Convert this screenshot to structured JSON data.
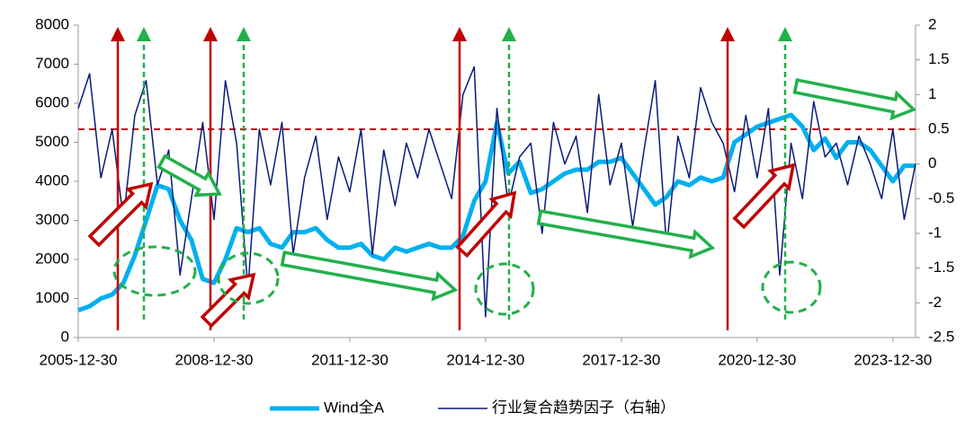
{
  "chart_data": {
    "type": "line",
    "x": [
      2006,
      2006.25,
      2006.5,
      2006.75,
      2007,
      2007.25,
      2007.5,
      2007.75,
      2008,
      2008.25,
      2008.5,
      2008.75,
      2009,
      2009.25,
      2009.5,
      2009.75,
      2010,
      2010.25,
      2010.5,
      2010.75,
      2011,
      2011.25,
      2011.5,
      2011.75,
      2012,
      2012.25,
      2012.5,
      2012.75,
      2013,
      2013.25,
      2013.5,
      2013.75,
      2014,
      2014.25,
      2014.5,
      2014.75,
      2015,
      2015.25,
      2015.5,
      2015.75,
      2016,
      2016.25,
      2016.5,
      2016.75,
      2017,
      2017.25,
      2017.5,
      2017.75,
      2018,
      2018.25,
      2018.5,
      2018.75,
      2019,
      2019.25,
      2019.5,
      2019.75,
      2020,
      2020.25,
      2020.5,
      2020.75,
      2021,
      2021.25,
      2021.5,
      2021.75,
      2022,
      2022.25,
      2022.5,
      2022.75,
      2023,
      2023.25,
      2023.5,
      2023.75,
      2024,
      2024.25,
      2024.5
    ],
    "series": [
      {
        "name": "Wind全A",
        "color": "#00b0f0",
        "values": [
          700,
          800,
          1000,
          1100,
          1400,
          2100,
          3000,
          3900,
          3800,
          3000,
          2500,
          1500,
          1400,
          2000,
          2800,
          2700,
          2800,
          2400,
          2300,
          2700,
          2700,
          2800,
          2500,
          2300,
          2300,
          2400,
          2100,
          2000,
          2300,
          2200,
          2300,
          2400,
          2300,
          2300,
          2600,
          3500,
          4000,
          5500,
          4200,
          4500,
          3700,
          3800,
          4000,
          4200,
          4300,
          4300,
          4500,
          4500,
          4600,
          4200,
          3800,
          3400,
          3600,
          4000,
          3900,
          4100,
          4000,
          4100,
          5000,
          5200,
          5400,
          5500,
          5600,
          5700,
          5400,
          4800,
          5100,
          4600,
          5000,
          5000,
          4800,
          4400,
          4000,
          4400,
          4400
        ]
      },
      {
        "name": "行业复合趋势因子（右轴）",
        "color": "#0a1a7a",
        "axis": "y2",
        "values": [
          0.8,
          1.3,
          -0.2,
          0.5,
          -0.8,
          0.7,
          1.2,
          -0.3,
          0.2,
          -1.6,
          -0.5,
          0.6,
          -0.8,
          1.2,
          0.3,
          -1.8,
          0.5,
          -0.3,
          0.6,
          -1.3,
          -0.2,
          0.4,
          -0.8,
          0.1,
          -0.4,
          0.5,
          -1.3,
          0.2,
          -0.6,
          0.3,
          -0.2,
          0.5,
          0.0,
          -0.5,
          1.0,
          1.4,
          -2.2,
          0.8,
          -0.6,
          0.1,
          0.3,
          -1.0,
          0.6,
          0.0,
          0.4,
          -0.7,
          1.0,
          -0.3,
          0.3,
          -0.9,
          0.2,
          1.2,
          -1.2,
          0.4,
          -0.2,
          1.1,
          0.6,
          0.3,
          -0.4,
          0.7,
          -0.2,
          0.8,
          -1.6,
          0.3,
          -0.5,
          0.9,
          0.1,
          0.3,
          -0.3,
          0.4,
          0.0,
          -0.5,
          0.5,
          -0.8,
          0.0
        ]
      }
    ],
    "xlim": [
      2006,
      2024.5
    ],
    "xticks": [
      {
        "value": 2006,
        "label": "2005-12-30"
      },
      {
        "value": 2009,
        "label": "2008-12-30"
      },
      {
        "value": 2012,
        "label": "2011-12-30"
      },
      {
        "value": 2015,
        "label": "2014-12-30"
      },
      {
        "value": 2018,
        "label": "2017-12-30"
      },
      {
        "value": 2021,
        "label": "2020-12-30"
      },
      {
        "value": 2024,
        "label": "2023-12-30"
      }
    ],
    "ylim": [
      0,
      8000
    ],
    "yticks": [
      0,
      1000,
      2000,
      3000,
      4000,
      5000,
      6000,
      7000,
      8000
    ],
    "y2lim": [
      -2.5,
      2
    ],
    "y2ticks": [
      -2.5,
      -2,
      -1.5,
      -1,
      -0.5,
      0,
      0.5,
      1,
      1.5,
      2
    ],
    "reference_line": {
      "axis": "y2",
      "value": 0.5,
      "color": "#c00000"
    }
  }
}
